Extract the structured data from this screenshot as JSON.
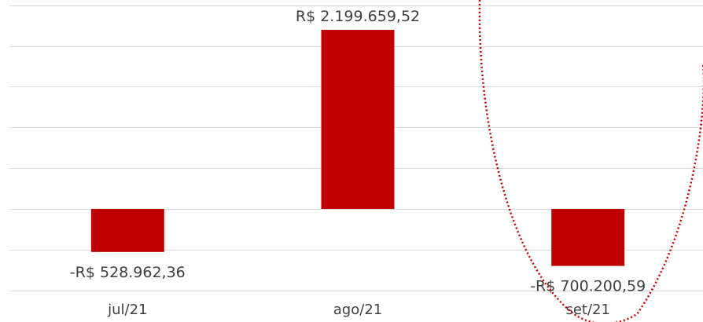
{
  "chart_data": {
    "type": "bar",
    "categories": [
      "jul/21",
      "ago/21",
      "set/21"
    ],
    "values": [
      -528962.36,
      2199659.52,
      -700200.59
    ],
    "data_labels": [
      "-R$ 528.962,36",
      "R$ 2.199.659,52",
      "-R$ 700.200,59"
    ],
    "ylim": [
      -1000000,
      2500000
    ],
    "grid": true,
    "legend": "none",
    "colors": {
      "bar": "#c00000",
      "grid": "#d9d9d9",
      "text": "#3f3f3f",
      "annotation": "#c00000"
    },
    "annotation": {
      "shape": "dotted-ellipse",
      "highlights_category": "set/21"
    }
  }
}
